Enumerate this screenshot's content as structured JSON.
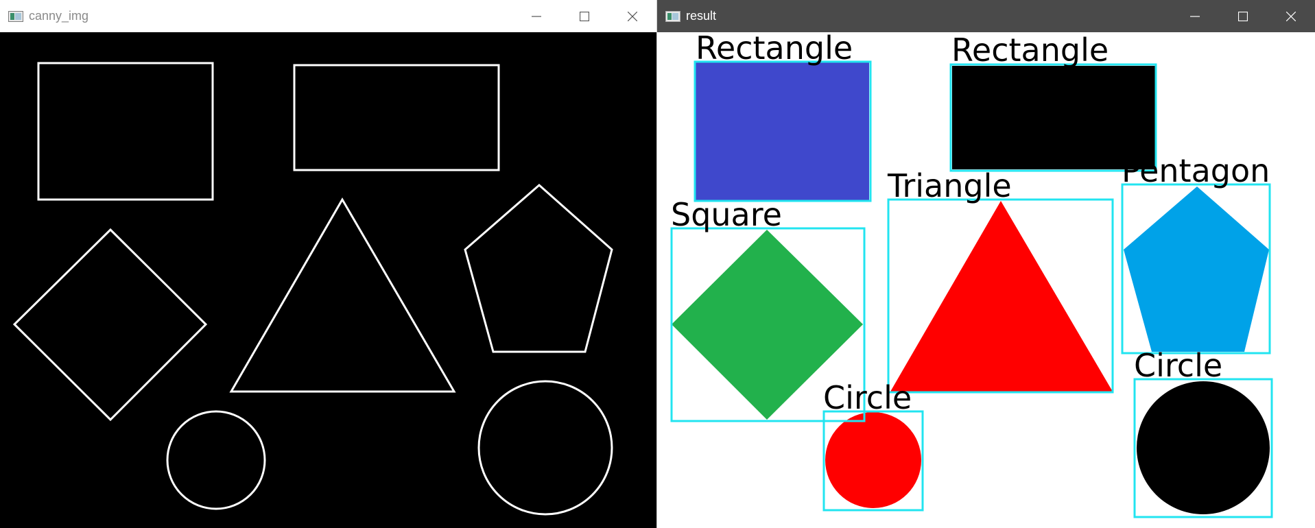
{
  "colors": {
    "edge": "#ffffff",
    "bbox": "#22e4f0",
    "blue_rect": "#3f48cc",
    "black": "#000000",
    "green": "#22b14c",
    "red": "#ff0000",
    "light_blue": "#00a2e8"
  },
  "windows": {
    "canny": {
      "title": "canny_img",
      "icon": "app-window-icon",
      "controls": [
        "minimize-icon",
        "maximize-icon",
        "close-icon"
      ]
    },
    "result": {
      "title": "result",
      "icon": "app-window-icon",
      "controls": [
        "minimize-icon",
        "maximize-icon",
        "close-icon"
      ]
    }
  },
  "result": {
    "labels": [
      "Rectangle",
      "Rectangle",
      "Square",
      "Triangle",
      "Pentagon",
      "Circle",
      "Circle"
    ]
  }
}
